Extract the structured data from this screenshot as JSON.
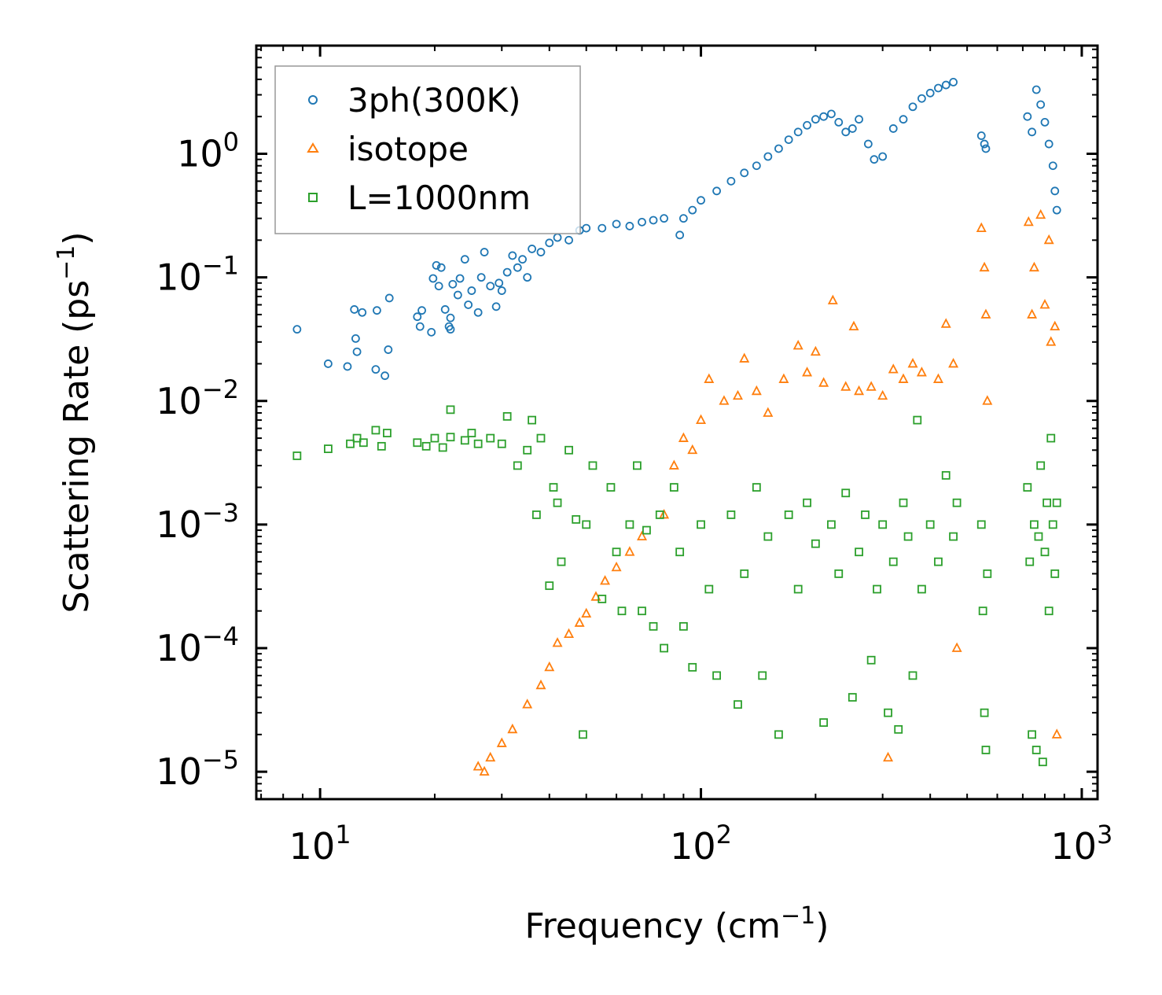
{
  "chart_data": {
    "type": "scatter",
    "title": "",
    "xlabel": "Frequency (cm",
    "xlabel_sup": "−1",
    "xlabel_end": ")",
    "ylabel": "Scattering Rate (ps",
    "ylabel_sup": "−1",
    "ylabel_end": ")",
    "xscale": "log",
    "yscale": "log",
    "xlim": [
      6.8,
      1100
    ],
    "ylim": [
      6e-06,
      7.5
    ],
    "xticks": [
      {
        "base": "10",
        "exp": "1",
        "value": 10
      },
      {
        "base": "10",
        "exp": "2",
        "value": 100
      },
      {
        "base": "10",
        "exp": "3",
        "value": 1000
      }
    ],
    "yticks": [
      {
        "base": "10",
        "exp": "0",
        "value": 1
      },
      {
        "base": "10",
        "exp": "−1",
        "value": 0.1
      },
      {
        "base": "10",
        "exp": "−2",
        "value": 0.01
      },
      {
        "base": "10",
        "exp": "−3",
        "value": 0.001
      },
      {
        "base": "10",
        "exp": "−4",
        "value": 0.0001
      },
      {
        "base": "10",
        "exp": "−5",
        "value": 1e-05
      }
    ],
    "legend_position": "top-left",
    "series": [
      {
        "name": "3ph(300K)",
        "marker": "circle",
        "color": "#1f77b4",
        "points": [
          [
            8.7,
            0.038
          ],
          [
            10.5,
            0.02
          ],
          [
            11.8,
            0.019
          ],
          [
            12.3,
            0.055
          ],
          [
            12.4,
            0.032
          ],
          [
            12.5,
            0.025
          ],
          [
            12.9,
            0.052
          ],
          [
            14.0,
            0.018
          ],
          [
            14.1,
            0.054
          ],
          [
            14.8,
            0.016
          ],
          [
            15.1,
            0.026
          ],
          [
            15.2,
            0.068
          ],
          [
            18.0,
            0.048
          ],
          [
            18.3,
            0.04
          ],
          [
            18.5,
            0.054
          ],
          [
            19.6,
            0.036
          ],
          [
            19.8,
            0.098
          ],
          [
            20.2,
            0.125
          ],
          [
            20.5,
            0.085
          ],
          [
            20.8,
            0.12
          ],
          [
            21.3,
            0.055
          ],
          [
            21.8,
            0.04
          ],
          [
            22.0,
            0.047
          ],
          [
            22.0,
            0.038
          ],
          [
            22.3,
            0.088
          ],
          [
            23.0,
            0.072
          ],
          [
            23.3,
            0.098
          ],
          [
            24.0,
            0.14
          ],
          [
            24.5,
            0.06
          ],
          [
            25.0,
            0.078
          ],
          [
            26.0,
            0.052
          ],
          [
            26.5,
            0.1
          ],
          [
            27.0,
            0.16
          ],
          [
            28.0,
            0.085
          ],
          [
            29.0,
            0.058
          ],
          [
            29.5,
            0.09
          ],
          [
            30.0,
            0.078
          ],
          [
            31.0,
            0.11
          ],
          [
            32.0,
            0.15
          ],
          [
            33.0,
            0.12
          ],
          [
            34.0,
            0.14
          ],
          [
            35.0,
            0.1
          ],
          [
            36.0,
            0.17
          ],
          [
            38.0,
            0.16
          ],
          [
            40.0,
            0.19
          ],
          [
            42.0,
            0.21
          ],
          [
            45.0,
            0.2
          ],
          [
            48.0,
            0.24
          ],
          [
            50.0,
            0.25
          ],
          [
            55.0,
            0.25
          ],
          [
            60.0,
            0.27
          ],
          [
            65.0,
            0.26
          ],
          [
            70.0,
            0.28
          ],
          [
            75.0,
            0.29
          ],
          [
            80.0,
            0.3
          ],
          [
            88.0,
            0.22
          ],
          [
            90.0,
            0.3
          ],
          [
            95.0,
            0.35
          ],
          [
            100.0,
            0.42
          ],
          [
            110.0,
            0.5
          ],
          [
            120.0,
            0.6
          ],
          [
            130.0,
            0.7
          ],
          [
            140.0,
            0.8
          ],
          [
            150.0,
            0.95
          ],
          [
            160.0,
            1.1
          ],
          [
            170.0,
            1.3
          ],
          [
            180.0,
            1.5
          ],
          [
            190.0,
            1.7
          ],
          [
            200.0,
            1.9
          ],
          [
            210.0,
            2.0
          ],
          [
            220.0,
            2.1
          ],
          [
            230.0,
            1.8
          ],
          [
            240.0,
            1.5
          ],
          [
            250.0,
            1.6
          ],
          [
            260.0,
            1.9
          ],
          [
            275.0,
            1.2
          ],
          [
            285.0,
            0.9
          ],
          [
            300.0,
            0.95
          ],
          [
            320.0,
            1.6
          ],
          [
            340.0,
            1.9
          ],
          [
            360.0,
            2.4
          ],
          [
            380.0,
            2.8
          ],
          [
            400.0,
            3.1
          ],
          [
            420.0,
            3.4
          ],
          [
            440.0,
            3.6
          ],
          [
            460.0,
            3.8
          ],
          [
            545.0,
            1.4
          ],
          [
            555.0,
            1.2
          ],
          [
            560.0,
            1.1
          ],
          [
            720.0,
            2.0
          ],
          [
            740.0,
            1.5
          ],
          [
            760.0,
            3.3
          ],
          [
            780.0,
            2.5
          ],
          [
            800.0,
            1.8
          ],
          [
            820.0,
            1.2
          ],
          [
            840.0,
            0.8
          ],
          [
            850.0,
            0.5
          ],
          [
            860.0,
            0.35
          ]
        ]
      },
      {
        "name": "isotope",
        "marker": "triangle",
        "color": "#ff7f0e",
        "points": [
          [
            26.0,
            1.1e-05
          ],
          [
            27.0,
            1e-05
          ],
          [
            28.0,
            1.3e-05
          ],
          [
            30.0,
            1.7e-05
          ],
          [
            32.0,
            2.2e-05
          ],
          [
            35.0,
            3.5e-05
          ],
          [
            38.0,
            5e-05
          ],
          [
            40.0,
            7e-05
          ],
          [
            42.0,
            0.00011
          ],
          [
            45.0,
            0.00013
          ],
          [
            48.0,
            0.00016
          ],
          [
            50.0,
            0.00019
          ],
          [
            53.0,
            0.00026
          ],
          [
            56.0,
            0.00035
          ],
          [
            60.0,
            0.00045
          ],
          [
            65.0,
            0.0006
          ],
          [
            70.0,
            0.0008
          ],
          [
            80.0,
            0.0012
          ],
          [
            85.0,
            0.003
          ],
          [
            90.0,
            0.005
          ],
          [
            95.0,
            0.004
          ],
          [
            100.0,
            0.007
          ],
          [
            105.0,
            0.015
          ],
          [
            115.0,
            0.01
          ],
          [
            125.0,
            0.011
          ],
          [
            130.0,
            0.022
          ],
          [
            140.0,
            0.012
          ],
          [
            150.0,
            0.008
          ],
          [
            165.0,
            0.015
          ],
          [
            180.0,
            0.028
          ],
          [
            190.0,
            0.017
          ],
          [
            200.0,
            0.025
          ],
          [
            210.0,
            0.014
          ],
          [
            222.0,
            0.065
          ],
          [
            240.0,
            0.013
          ],
          [
            252.0,
            0.04
          ],
          [
            260.0,
            0.012
          ],
          [
            280.0,
            0.013
          ],
          [
            300.0,
            0.011
          ],
          [
            310.0,
            1.3e-05
          ],
          [
            320.0,
            0.018
          ],
          [
            340.0,
            0.015
          ],
          [
            360.0,
            0.02
          ],
          [
            380.0,
            0.017
          ],
          [
            420.0,
            0.015
          ],
          [
            440.0,
            0.042
          ],
          [
            460.0,
            0.02
          ],
          [
            470.0,
            0.0001
          ],
          [
            545.0,
            0.25
          ],
          [
            555.0,
            0.12
          ],
          [
            560.0,
            0.05
          ],
          [
            565.0,
            0.01
          ],
          [
            725.0,
            0.28
          ],
          [
            740.0,
            0.05
          ],
          [
            750.0,
            0.12
          ],
          [
            780.0,
            0.32
          ],
          [
            800.0,
            0.06
          ],
          [
            820.0,
            0.2
          ],
          [
            830.0,
            0.03
          ],
          [
            850.0,
            0.04
          ],
          [
            860.0,
            2e-05
          ]
        ]
      },
      {
        "name": "L=1000nm",
        "marker": "square",
        "color": "#2ca02c",
        "points": [
          [
            8.7,
            0.0036
          ],
          [
            10.5,
            0.0041
          ],
          [
            12.0,
            0.0045
          ],
          [
            12.5,
            0.005
          ],
          [
            13.0,
            0.0046
          ],
          [
            14.0,
            0.0058
          ],
          [
            14.5,
            0.0043
          ],
          [
            15.0,
            0.0055
          ],
          [
            18.0,
            0.0046
          ],
          [
            19.0,
            0.0043
          ],
          [
            20.0,
            0.005
          ],
          [
            21.0,
            0.0042
          ],
          [
            22.0,
            0.0051
          ],
          [
            22.0,
            0.0085
          ],
          [
            24.0,
            0.0048
          ],
          [
            25.0,
            0.0055
          ],
          [
            26.0,
            0.0045
          ],
          [
            28.0,
            0.005
          ],
          [
            30.0,
            0.0045
          ],
          [
            31.0,
            0.0075
          ],
          [
            33.0,
            0.003
          ],
          [
            35.0,
            0.004
          ],
          [
            36.0,
            0.007
          ],
          [
            37.0,
            0.0012
          ],
          [
            38.0,
            0.005
          ],
          [
            40.0,
            0.00032
          ],
          [
            41.0,
            0.002
          ],
          [
            42.0,
            0.0015
          ],
          [
            43.0,
            0.0005
          ],
          [
            45.0,
            0.004
          ],
          [
            47.0,
            0.0011
          ],
          [
            49.0,
            2e-05
          ],
          [
            50.0,
            0.001
          ],
          [
            52.0,
            0.003
          ],
          [
            55.0,
            0.00025
          ],
          [
            58.0,
            0.002
          ],
          [
            60.0,
            0.0006
          ],
          [
            62.0,
            0.0002
          ],
          [
            65.0,
            0.001
          ],
          [
            68.0,
            0.003
          ],
          [
            70.0,
            0.0002
          ],
          [
            72.0,
            0.0009
          ],
          [
            75.0,
            0.00015
          ],
          [
            78.0,
            0.0012
          ],
          [
            80.0,
            0.0001
          ],
          [
            85.0,
            0.002
          ],
          [
            88.0,
            0.0006
          ],
          [
            90.0,
            0.00015
          ],
          [
            95.0,
            7e-05
          ],
          [
            100.0,
            0.001
          ],
          [
            105.0,
            0.0003
          ],
          [
            110.0,
            6e-05
          ],
          [
            120.0,
            0.0012
          ],
          [
            125.0,
            3.5e-05
          ],
          [
            130.0,
            0.0004
          ],
          [
            140.0,
            0.002
          ],
          [
            145.0,
            6e-05
          ],
          [
            150.0,
            0.0008
          ],
          [
            160.0,
            2e-05
          ],
          [
            170.0,
            0.0012
          ],
          [
            180.0,
            0.0003
          ],
          [
            190.0,
            0.0015
          ],
          [
            200.0,
            0.0007
          ],
          [
            210.0,
            2.5e-05
          ],
          [
            220.0,
            0.001
          ],
          [
            230.0,
            0.0004
          ],
          [
            240.0,
            0.0018
          ],
          [
            250.0,
            4e-05
          ],
          [
            260.0,
            0.0006
          ],
          [
            270.0,
            0.0012
          ],
          [
            280.0,
            8e-05
          ],
          [
            290.0,
            0.0003
          ],
          [
            300.0,
            0.001
          ],
          [
            310.0,
            3e-05
          ],
          [
            320.0,
            0.0005
          ],
          [
            330.0,
            2.2e-05
          ],
          [
            340.0,
            0.0015
          ],
          [
            350.0,
            0.0008
          ],
          [
            360.0,
            6e-05
          ],
          [
            370.0,
            0.007
          ],
          [
            380.0,
            0.0003
          ],
          [
            400.0,
            0.001
          ],
          [
            420.0,
            0.0005
          ],
          [
            440.0,
            0.0025
          ],
          [
            460.0,
            0.0008
          ],
          [
            470.0,
            0.0015
          ],
          [
            545.0,
            0.001
          ],
          [
            550.0,
            0.0002
          ],
          [
            555.0,
            3e-05
          ],
          [
            560.0,
            1.5e-05
          ],
          [
            565.0,
            0.0004
          ],
          [
            720.0,
            0.002
          ],
          [
            730.0,
            0.0005
          ],
          [
            740.0,
            2e-05
          ],
          [
            750.0,
            0.001
          ],
          [
            760.0,
            1.5e-05
          ],
          [
            770.0,
            0.0008
          ],
          [
            780.0,
            0.003
          ],
          [
            790.0,
            1.2e-05
          ],
          [
            800.0,
            0.0006
          ],
          [
            810.0,
            0.0015
          ],
          [
            820.0,
            0.0002
          ],
          [
            830.0,
            0.005
          ],
          [
            840.0,
            0.001
          ],
          [
            850.0,
            0.0004
          ],
          [
            860.0,
            0.0015
          ]
        ]
      }
    ]
  }
}
